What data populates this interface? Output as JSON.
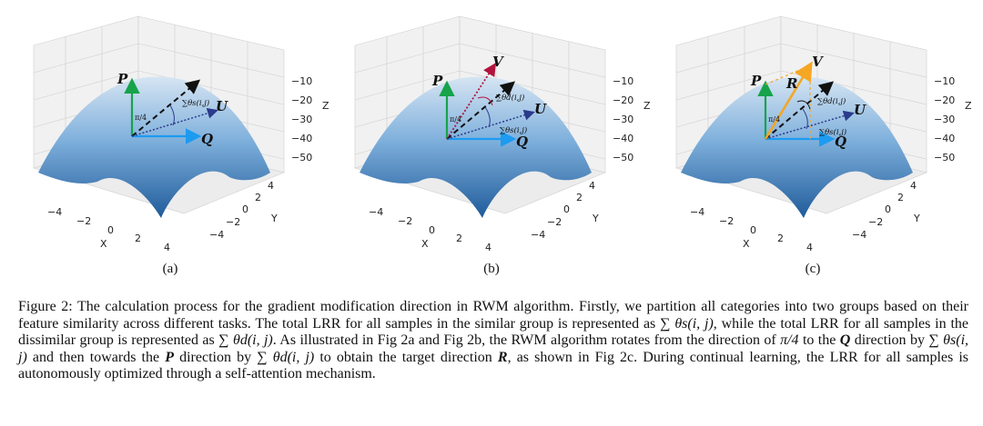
{
  "figure": {
    "panels": [
      {
        "id": "a",
        "label": "(a)"
      },
      {
        "id": "b",
        "label": "(b)"
      },
      {
        "id": "c",
        "label": "(c)"
      }
    ],
    "axes": {
      "x_label": "X",
      "y_label": "Y",
      "z_label": "Z",
      "x_ticks": [
        "−4",
        "−2",
        "0",
        "2",
        "4"
      ],
      "y_ticks": [
        "4",
        "2",
        "0",
        "−2",
        "−4"
      ],
      "z_ticks": [
        "−10",
        "−20",
        "−30",
        "−40",
        "−50"
      ]
    },
    "vectors": {
      "P": "P",
      "Q": "Q",
      "U": "U",
      "V": "V",
      "R": "R"
    },
    "annotations": {
      "pi_over_4": "π/4",
      "sum_theta_s": "∑θs(i,j)",
      "sum_theta_d": "∑θd(i,j)"
    },
    "colors": {
      "surface_top": "#c9dcee",
      "surface_bottom": "#1f5b9a",
      "P_arrow": "#16a34a",
      "Q_arrow": "#1d9bf0",
      "U_arrow": "#2b3a8c",
      "V_arrow": "#b0143c",
      "R_arrow": "#f5a623"
    }
  },
  "caption": {
    "prefix": "Figure 2:",
    "p1": " The calculation process for the gradient modification direction in RWM algorithm. Firstly, we partition all categories into two groups based on their feature similarity across different tasks. The total LRR for all samples in the similar group is represented as ",
    "m1": "∑ θs(i, j)",
    "p2": ", while the total LRR for all samples in the dissimilar group is represented as ",
    "m2": "∑ θd(i, j)",
    "p3": ". As illustrated in Fig 2a and Fig 2b, the RWM algorithm rotates from the direction of ",
    "m3": "π/4",
    "p4": " to the ",
    "m4": "Q",
    "p5": " direction by ",
    "m5": "∑ θs(i, j)",
    "p6": " and then towards the ",
    "m6": "P",
    "p7": " direction by ",
    "m7": "∑ θd(i, j)",
    "p8": " to obtain the target direction ",
    "m8": "R",
    "p9": ", as shown in Fig 2c. During continual learning, the LRR for all samples is autonomously optimized through a self-attention mechanism."
  }
}
